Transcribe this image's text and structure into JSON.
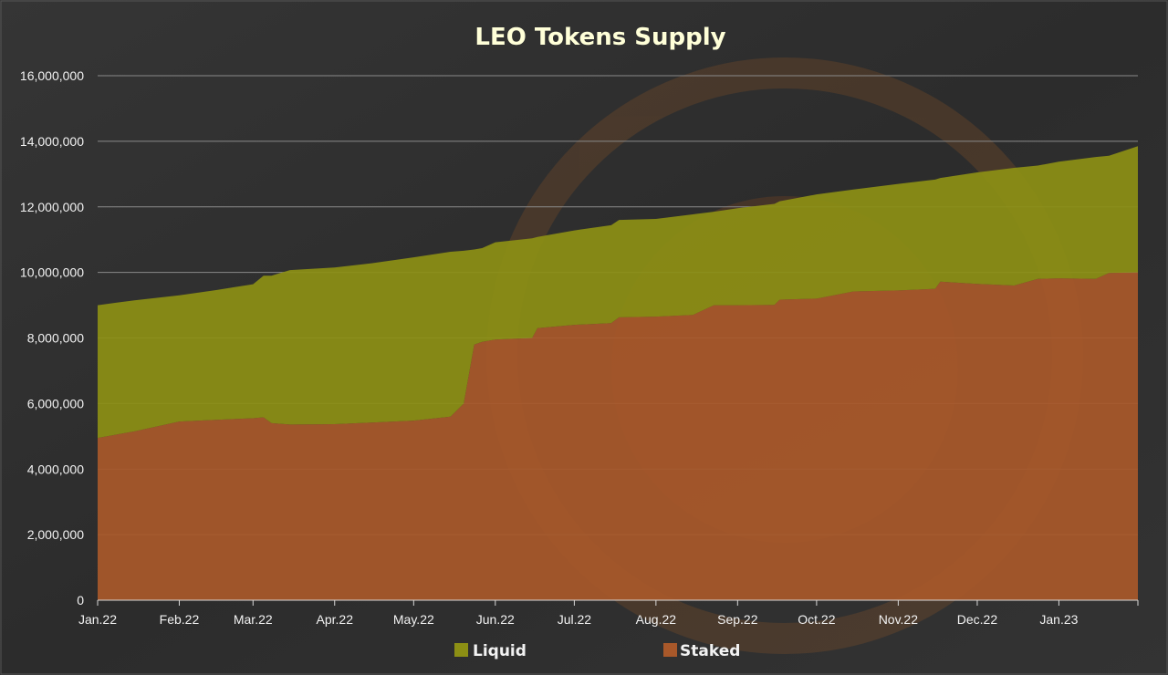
{
  "chart_data": {
    "type": "area",
    "stacked": true,
    "title": "LEO Tokens Supply",
    "xlabel": "",
    "ylabel": "",
    "ylim": [
      0,
      16000000
    ],
    "grid": true,
    "legend_position": "bottom",
    "y_ticks": [
      "0",
      "2,000,000",
      "4,000,000",
      "6,000,000",
      "8,000,000",
      "10,000,000",
      "12,000,000",
      "14,000,000",
      "16,000,000"
    ],
    "x_ticks": [
      "Jan.22",
      "Feb.22",
      "Mar.22",
      "Apr.22",
      "May.22",
      "Jun.22",
      "Jul.22",
      "Aug.22",
      "Sep.22",
      "Oct.22",
      "Nov.22",
      "Dec.22",
      "Jan.23"
    ],
    "x": [
      "2022-01-01",
      "2022-01-15",
      "2022-02-01",
      "2022-02-15",
      "2022-03-01",
      "2022-03-05",
      "2022-03-08",
      "2022-03-15",
      "2022-04-01",
      "2022-04-15",
      "2022-05-01",
      "2022-05-15",
      "2022-05-20",
      "2022-05-24",
      "2022-05-27",
      "2022-06-01",
      "2022-06-15",
      "2022-06-17",
      "2022-07-01",
      "2022-07-15",
      "2022-07-18",
      "2022-08-01",
      "2022-08-15",
      "2022-08-23",
      "2022-09-01",
      "2022-09-15",
      "2022-09-17",
      "2022-10-01",
      "2022-10-15",
      "2022-11-01",
      "2022-11-15",
      "2022-11-17",
      "2022-12-01",
      "2022-12-15",
      "2022-12-24",
      "2023-01-01",
      "2023-01-15",
      "2023-01-20",
      "2023-01-31"
    ],
    "series": [
      {
        "name": "Staked",
        "color": "#a8582a",
        "values": [
          4950000,
          5150000,
          5450000,
          5500000,
          5550000,
          5580000,
          5400000,
          5360000,
          5370000,
          5420000,
          5480000,
          5600000,
          6000000,
          7800000,
          7880000,
          7950000,
          8000000,
          8300000,
          8400000,
          8450000,
          8630000,
          8650000,
          8700000,
          9000000,
          9000000,
          9010000,
          9170000,
          9200000,
          9420000,
          9450000,
          9500000,
          9720000,
          9650000,
          9600000,
          9800000,
          9820000,
          9800000,
          9980000,
          10000000
        ]
      },
      {
        "name": "Liquid",
        "color": "#8c8f14",
        "values": [
          4050000,
          4000000,
          3850000,
          3960000,
          4090000,
          4320000,
          4500000,
          4710000,
          4780000,
          4860000,
          4980000,
          5030000,
          4660000,
          2900000,
          2860000,
          2970000,
          3040000,
          2780000,
          2880000,
          2990000,
          2970000,
          2980000,
          3070000,
          2850000,
          2960000,
          3080000,
          3000000,
          3180000,
          3110000,
          3250000,
          3330000,
          3160000,
          3400000,
          3590000,
          3460000,
          3560000,
          3720000,
          3580000,
          3850000
        ]
      }
    ]
  }
}
